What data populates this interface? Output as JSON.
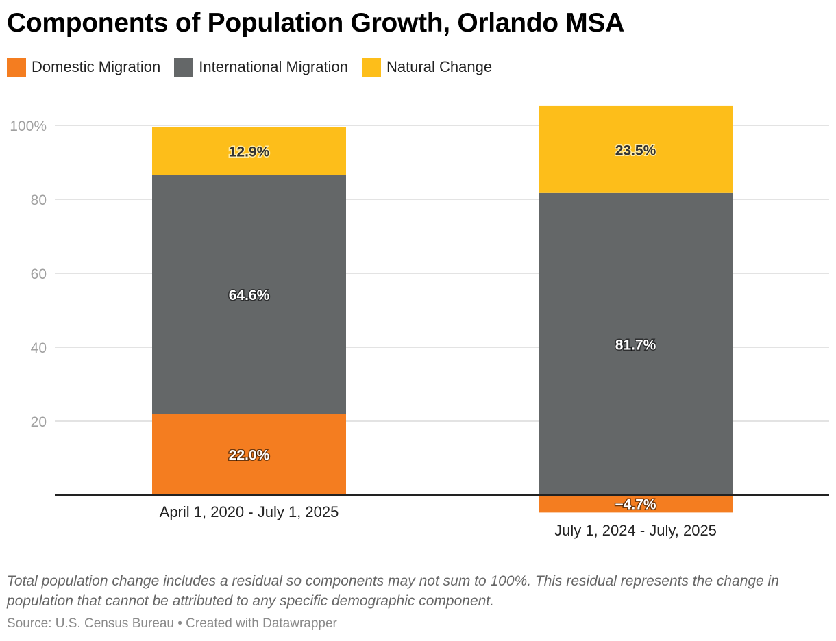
{
  "chart_data": {
    "type": "bar",
    "stacked": true,
    "title": "Components of Population Growth, Orlando MSA",
    "xlabel": "",
    "ylabel": "",
    "ylim": [
      -5,
      100
    ],
    "yticks": [
      20,
      40,
      60,
      80,
      100
    ],
    "ytick_labels": [
      "20",
      "40",
      "60",
      "80",
      "100%"
    ],
    "grid": true,
    "legend_position": "top-left",
    "categories": [
      "April 1, 2020 - July 1, 2025",
      "July 1, 2024 - July, 2025"
    ],
    "series": [
      {
        "name": "Domestic Migration",
        "color": "#f47d20",
        "values": [
          22.0,
          -4.7
        ],
        "labels": [
          "22.0%",
          "−4.7%"
        ],
        "label_color": "#ffffff"
      },
      {
        "name": "International Migration",
        "color": "#646768",
        "values": [
          64.6,
          81.7
        ],
        "labels": [
          "64.6%",
          "81.7%"
        ],
        "label_color": "#ffffff"
      },
      {
        "name": "Natural Change",
        "color": "#fdbe1a",
        "values": [
          12.9,
          23.5
        ],
        "labels": [
          "12.9%",
          "23.5%"
        ],
        "label_color": "#333333"
      }
    ]
  },
  "notes": "Total population change includes a residual so components may not sum to 100%. This residual represents the change in population that cannot be attributed to any specific demographic component.",
  "source": "Source: U.S. Census Bureau • Created with Datawrapper"
}
